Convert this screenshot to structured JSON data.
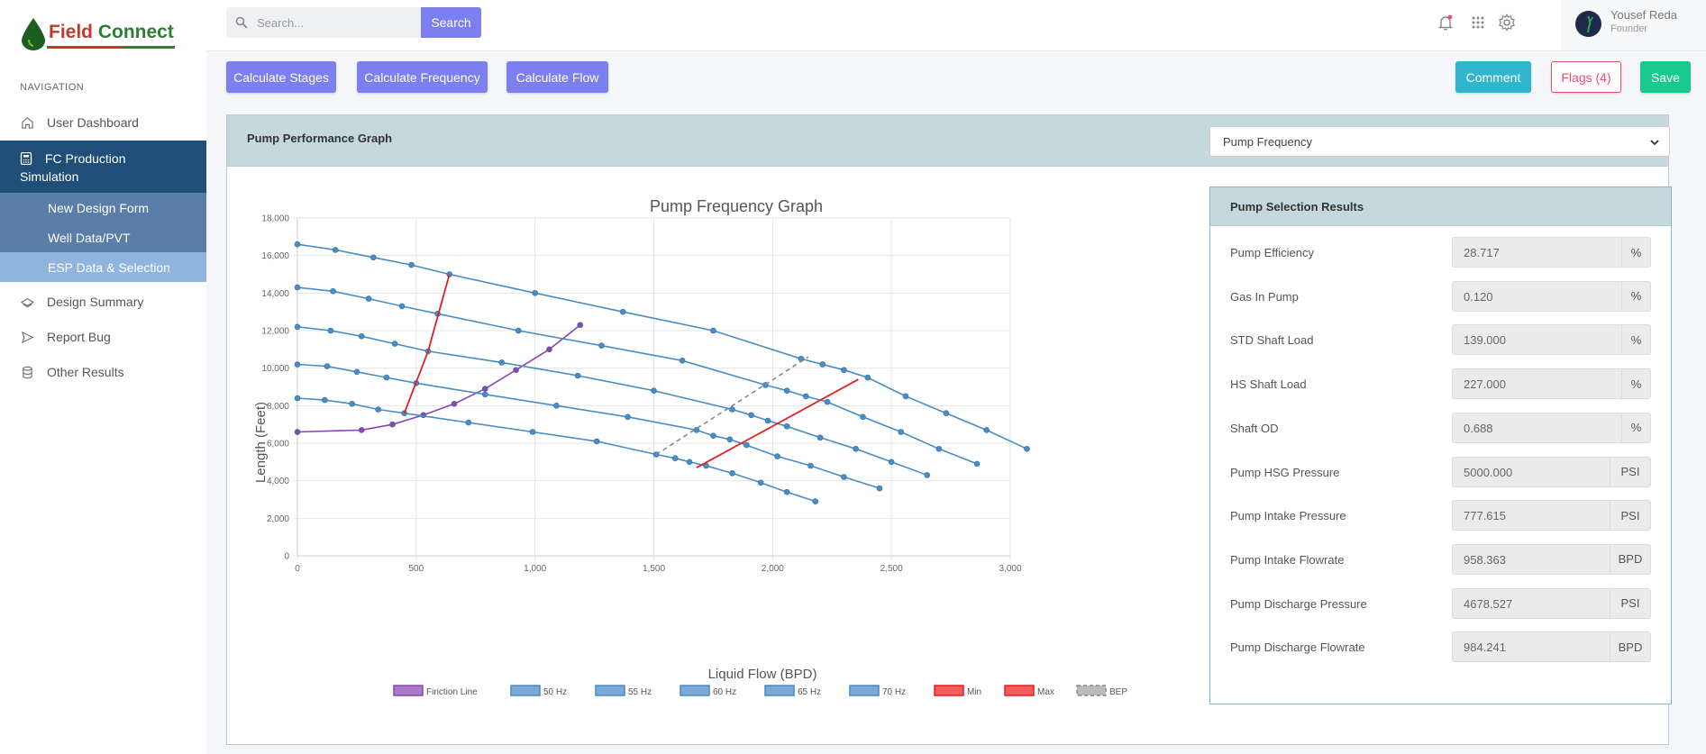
{
  "brand": {
    "logo_text_a": "Field",
    "logo_text_b": "Connect"
  },
  "nav": {
    "title": "NAVIGATION",
    "items": [
      {
        "label": "User Dashboard",
        "icon": "home-icon"
      },
      {
        "label": "FC Production Simulation",
        "icon": "calculator-icon"
      },
      {
        "label": "Design Summary",
        "icon": "layers-icon"
      },
      {
        "label": "Report Bug",
        "icon": "send-icon"
      },
      {
        "label": "Other Results",
        "icon": "database-icon"
      }
    ],
    "active_line1": "FC Production",
    "active_line2": "Simulation",
    "sub_items": [
      {
        "label": "New Design Form"
      },
      {
        "label": "Well Data/PVT"
      },
      {
        "label": "ESP Data & Selection"
      }
    ]
  },
  "topbar": {
    "search_placeholder": "Search...",
    "search_button": "Search",
    "user_name": "Yousef Reda",
    "user_role": "Founder"
  },
  "actions": {
    "calc_stages": "Calculate Stages",
    "calc_frequency": "Calculate Frequency",
    "calc_flow": "Calculate Flow",
    "comment": "Comment",
    "flags": "Flags (4)",
    "save": "Save"
  },
  "card": {
    "title": "Pump Performance Graph",
    "select_value": "Pump Frequency"
  },
  "results": {
    "title": "Pump Selection Results",
    "rows": [
      {
        "label": "Pump Efficiency",
        "value": "28.717",
        "unit": "%"
      },
      {
        "label": "Gas In Pump",
        "value": "0.120",
        "unit": "%"
      },
      {
        "label": "STD Shaft Load",
        "value": "139.000",
        "unit": "%"
      },
      {
        "label": "HS Shaft Load",
        "value": "227.000",
        "unit": "%"
      },
      {
        "label": "Shaft OD",
        "value": "0.688",
        "unit": "%"
      },
      {
        "label": "Pump HSG Pressure",
        "value": "5000.000",
        "unit": "PSI"
      },
      {
        "label": "Pump Intake Pressure",
        "value": "777.615",
        "unit": "PSI"
      },
      {
        "label": "Pump Intake Flowrate",
        "value": "958.363",
        "unit": "BPD"
      },
      {
        "label": "Pump Discharge Pressure",
        "value": "4678.527",
        "unit": "PSI"
      },
      {
        "label": "Pump Discharge Flowrate",
        "value": "984.241",
        "unit": "BPD"
      }
    ]
  },
  "chart_data": {
    "type": "line",
    "title": "Pump Frequency Graph",
    "xlabel": "Liquid Flow (BPD)",
    "ylabel": "Length (Feet)",
    "xlim": [
      0,
      3000
    ],
    "ylim": [
      0,
      18000
    ],
    "xticks": [
      "0",
      "500",
      "1,000",
      "1,500",
      "2,000",
      "2,500",
      "3,000"
    ],
    "yticks": [
      "0",
      "2,000",
      "4,000",
      "6,000",
      "8,000",
      "10,000",
      "12,000",
      "14,000",
      "16,000",
      "18,000"
    ],
    "grid": true,
    "legend_position": "bottom",
    "series": [
      {
        "name": "Firiction Line",
        "color": "#8e44ad",
        "points": [
          [
            0,
            6600
          ],
          [
            270,
            6700
          ],
          [
            400,
            7000
          ],
          [
            530,
            7500
          ],
          [
            660,
            8100
          ],
          [
            790,
            8900
          ],
          [
            920,
            9900
          ],
          [
            1060,
            11000
          ],
          [
            1190,
            12300
          ]
        ]
      },
      {
        "name": "50 Hz",
        "color": "#4a8cc4",
        "points": [
          [
            0,
            8400
          ],
          [
            115,
            8300
          ],
          [
            230,
            8100
          ],
          [
            340,
            7800
          ],
          [
            450,
            7600
          ],
          [
            720,
            7100
          ],
          [
            990,
            6600
          ],
          [
            1260,
            6100
          ],
          [
            1510,
            5400
          ],
          [
            1590,
            5200
          ],
          [
            1650,
            5000
          ],
          [
            1720,
            4800
          ],
          [
            1830,
            4400
          ],
          [
            1950,
            3900
          ],
          [
            2060,
            3400
          ],
          [
            2180,
            2900
          ]
        ]
      },
      {
        "name": "55 Hz",
        "color": "#4a8cc4",
        "points": [
          [
            0,
            10200
          ],
          [
            125,
            10100
          ],
          [
            250,
            9800
          ],
          [
            375,
            9500
          ],
          [
            500,
            9200
          ],
          [
            790,
            8600
          ],
          [
            1090,
            8000
          ],
          [
            1390,
            7400
          ],
          [
            1680,
            6700
          ],
          [
            1750,
            6400
          ],
          [
            1820,
            6200
          ],
          [
            1890,
            5900
          ],
          [
            2020,
            5300
          ],
          [
            2160,
            4800
          ],
          [
            2300,
            4200
          ],
          [
            2450,
            3600
          ]
        ]
      },
      {
        "name": "60 Hz",
        "color": "#4a8cc4",
        "points": [
          [
            0,
            12200
          ],
          [
            140,
            12000
          ],
          [
            270,
            11700
          ],
          [
            410,
            11300
          ],
          [
            550,
            10900
          ],
          [
            860,
            10300
          ],
          [
            1180,
            9600
          ],
          [
            1500,
            8800
          ],
          [
            1830,
            7800
          ],
          [
            1910,
            7500
          ],
          [
            1980,
            7200
          ],
          [
            2060,
            6900
          ],
          [
            2200,
            6300
          ],
          [
            2350,
            5700
          ],
          [
            2500,
            5000
          ],
          [
            2650,
            4300
          ]
        ]
      },
      {
        "name": "65 Hz",
        "color": "#4a8cc4",
        "points": [
          [
            0,
            14300
          ],
          [
            150,
            14100
          ],
          [
            300,
            13700
          ],
          [
            440,
            13300
          ],
          [
            590,
            12900
          ],
          [
            930,
            12000
          ],
          [
            1280,
            11200
          ],
          [
            1620,
            10400
          ],
          [
            1970,
            9100
          ],
          [
            2060,
            8800
          ],
          [
            2140,
            8500
          ],
          [
            2230,
            8200
          ],
          [
            2380,
            7400
          ],
          [
            2540,
            6600
          ],
          [
            2700,
            5700
          ],
          [
            2860,
            4900
          ]
        ]
      },
      {
        "name": "70 Hz",
        "color": "#4a8cc4",
        "points": [
          [
            0,
            16600
          ],
          [
            160,
            16300
          ],
          [
            320,
            15900
          ],
          [
            480,
            15500
          ],
          [
            640,
            15000
          ],
          [
            1000,
            14000
          ],
          [
            1370,
            13000
          ],
          [
            1750,
            12000
          ],
          [
            2120,
            10500
          ],
          [
            2210,
            10200
          ],
          [
            2300,
            9900
          ],
          [
            2400,
            9500
          ],
          [
            2560,
            8500
          ],
          [
            2730,
            7600
          ],
          [
            2900,
            6700
          ],
          [
            3070,
            5700
          ]
        ]
      },
      {
        "name": "Min",
        "color": "#e02020",
        "points": [
          [
            450,
            7600
          ],
          [
            550,
            10900
          ],
          [
            640,
            15000
          ]
        ]
      },
      {
        "name": "Max",
        "color": "#e02020",
        "points": [
          [
            1680,
            4700
          ],
          [
            2360,
            9400
          ]
        ]
      },
      {
        "name": "BEP",
        "color": "#888888",
        "points": [
          [
            1510,
            5400
          ],
          [
            2150,
            10600
          ]
        ]
      }
    ]
  }
}
